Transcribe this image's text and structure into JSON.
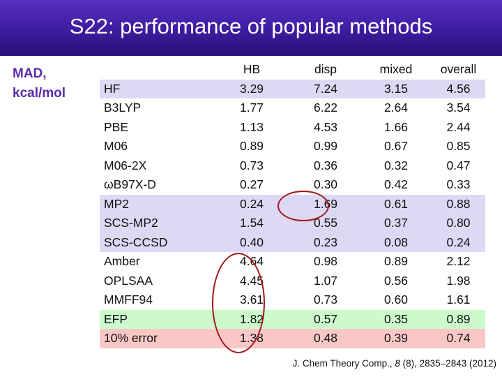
{
  "title": "S22: performance of popular methods",
  "side_label": {
    "line1": "MAD,",
    "line2": "kcal/mol"
  },
  "table": {
    "headers": [
      "",
      "HB",
      "disp",
      "mixed",
      "overall"
    ],
    "rows": [
      {
        "method": "HF",
        "hb": "3.29",
        "disp": "7.24",
        "mixed": "3.15",
        "overall": "4.56",
        "highlight": "purple"
      },
      {
        "method": "B3LYP",
        "hb": "1.77",
        "disp": "6.22",
        "mixed": "2.64",
        "overall": "3.54",
        "highlight": "none"
      },
      {
        "method": "PBE",
        "hb": "1.13",
        "disp": "4.53",
        "mixed": "1.66",
        "overall": "2.44",
        "highlight": "none"
      },
      {
        "method": "M06",
        "hb": "0.89",
        "disp": "0.99",
        "mixed": "0.67",
        "overall": "0.85",
        "highlight": "none"
      },
      {
        "method": "M06-2X",
        "hb": "0.73",
        "disp": "0.36",
        "mixed": "0.32",
        "overall": "0.47",
        "highlight": "none"
      },
      {
        "method": "ωB97X-D",
        "hb": "0.27",
        "disp": "0.30",
        "mixed": "0.42",
        "overall": "0.33",
        "highlight": "none"
      },
      {
        "method": "MP2",
        "hb": "0.24",
        "disp": "1.69",
        "mixed": "0.61",
        "overall": "0.88",
        "highlight": "purple"
      },
      {
        "method": "SCS-MP2",
        "hb": "1.54",
        "disp": "0.55",
        "mixed": "0.37",
        "overall": "0.80",
        "highlight": "purple"
      },
      {
        "method": "SCS-CCSD",
        "hb": "0.40",
        "disp": "0.23",
        "mixed": "0.08",
        "overall": "0.24",
        "highlight": "purple"
      },
      {
        "method": "Amber",
        "hb": "4.64",
        "disp": "0.98",
        "mixed": "0.89",
        "overall": "2.12",
        "highlight": "none"
      },
      {
        "method": "OPLSAA",
        "hb": "4.45",
        "disp": "1.07",
        "mixed": "0.56",
        "overall": "1.98",
        "highlight": "none"
      },
      {
        "method": "MMFF94",
        "hb": "3.61",
        "disp": "0.73",
        "mixed": "0.60",
        "overall": "1.61",
        "highlight": "none"
      },
      {
        "method": "EFP",
        "hb": "1.82",
        "disp": "0.57",
        "mixed": "0.35",
        "overall": "0.89",
        "highlight": "green"
      },
      {
        "method": "10% error",
        "hb": "1.38",
        "disp": "0.48",
        "mixed": "0.39",
        "overall": "0.74",
        "highlight": "red"
      }
    ]
  },
  "citation": {
    "journal": "J. Chem Theory Comp., ",
    "volume": "8",
    "rest": " (8), 2835–2843 (2012)"
  }
}
